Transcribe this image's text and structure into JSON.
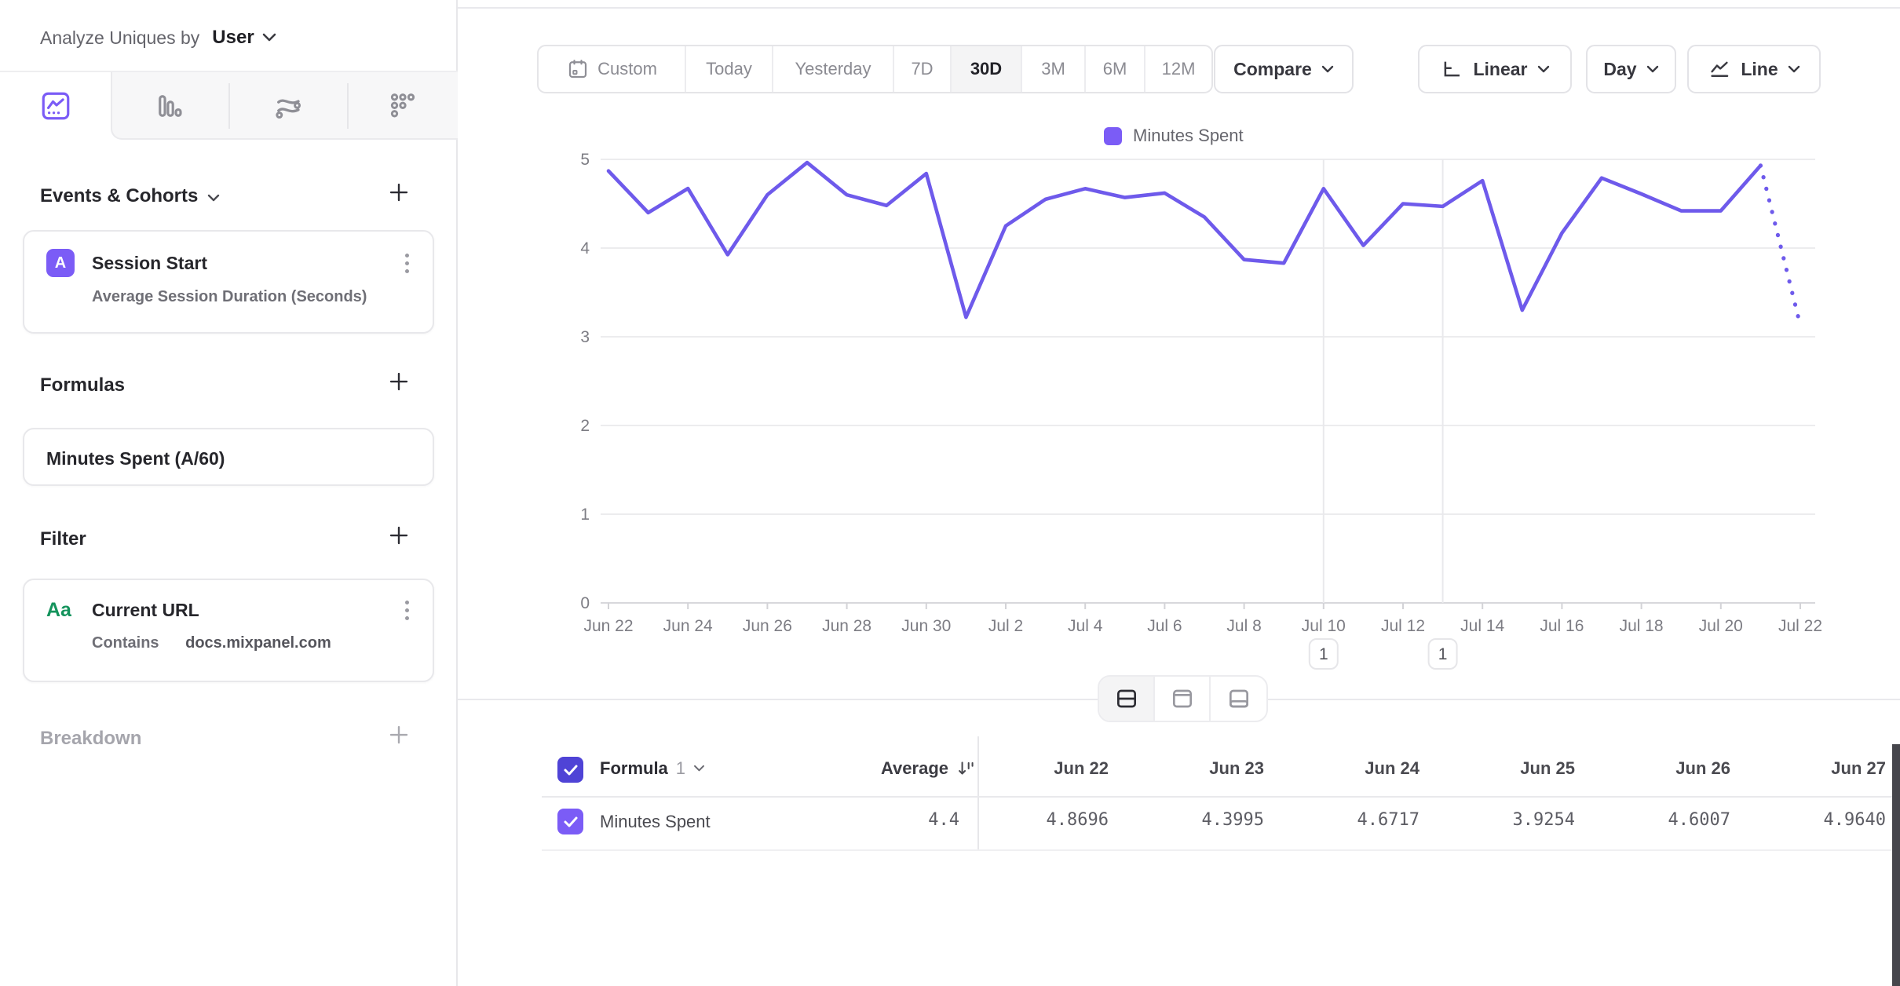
{
  "sidebar": {
    "analyze_label": "Analyze Uniques by",
    "analyze_value": "User",
    "sections": {
      "events": "Events & Cohorts",
      "formulas": "Formulas",
      "filter": "Filter",
      "breakdown": "Breakdown"
    },
    "event_card": {
      "badge": "A",
      "title": "Session Start",
      "subtitle": "Average Session Duration (Seconds)"
    },
    "formula_card": {
      "title": "Minutes Spent (A/60)"
    },
    "filter_card": {
      "badge": "Aa",
      "title": "Current URL",
      "operator": "Contains",
      "value": "docs.mixpanel.com"
    }
  },
  "toolbar": {
    "date_ranges": [
      "Custom",
      "Today",
      "Yesterday",
      "7D",
      "30D",
      "3M",
      "6M",
      "12M"
    ],
    "selected_range": "30D",
    "compare_label": "Compare",
    "scale_label": "Linear",
    "interval_label": "Day",
    "chart_type_label": "Line"
  },
  "chart_data": {
    "type": "line",
    "title": "",
    "xlabel": "",
    "ylabel": "",
    "ylim": [
      0,
      5
    ],
    "y_ticks": [
      0,
      1,
      2,
      3,
      4,
      5
    ],
    "grid": true,
    "legend_position": "top-center",
    "legend": [
      "Minutes Spent"
    ],
    "x": [
      "Jun 22",
      "Jun 23",
      "Jun 24",
      "Jun 25",
      "Jun 26",
      "Jun 27",
      "Jun 28",
      "Jun 29",
      "Jun 30",
      "Jul 1",
      "Jul 2",
      "Jul 3",
      "Jul 4",
      "Jul 5",
      "Jul 6",
      "Jul 7",
      "Jul 8",
      "Jul 9",
      "Jul 10",
      "Jul 11",
      "Jul 12",
      "Jul 13",
      "Jul 14",
      "Jul 15",
      "Jul 16",
      "Jul 17",
      "Jul 18",
      "Jul 19",
      "Jul 20",
      "Jul 21",
      "Jul 22"
    ],
    "x_tick_labels": [
      "Jun 22",
      "Jun 24",
      "Jun 26",
      "Jun 28",
      "Jun 30",
      "Jul 2",
      "Jul 4",
      "Jul 6",
      "Jul 8",
      "Jul 10",
      "Jul 12",
      "Jul 14",
      "Jul 16",
      "Jul 18",
      "Jul 20",
      "Jul 22"
    ],
    "series": [
      {
        "name": "Minutes Spent",
        "color": "#6e5aeb",
        "values": [
          4.8696,
          4.3995,
          4.6717,
          3.9254,
          4.6007,
          4.964,
          4.6,
          4.48,
          4.84,
          3.22,
          4.25,
          4.55,
          4.67,
          4.57,
          4.62,
          4.35,
          3.87,
          3.83,
          4.67,
          4.03,
          4.5,
          4.47,
          4.76,
          3.3,
          4.17,
          4.79,
          4.61,
          4.42,
          4.42,
          4.93,
          3.13
        ]
      }
    ],
    "dotted_tail_points": 1,
    "annotations": [
      {
        "label": "1",
        "date": "Jul 10"
      },
      {
        "label": "1",
        "date": "Jul 13"
      }
    ]
  },
  "table": {
    "formula_label": "Formula",
    "formula_index": "1",
    "average_label": "Average",
    "columns": [
      "Jun 22",
      "Jun 23",
      "Jun 24",
      "Jun 25",
      "Jun 26",
      "Jun 27"
    ],
    "rows": [
      {
        "name": "Minutes Spent",
        "average": "4.4",
        "values": [
          "4.8696",
          "4.3995",
          "4.6717",
          "3.9254",
          "4.6007",
          "4.9640"
        ]
      }
    ]
  }
}
